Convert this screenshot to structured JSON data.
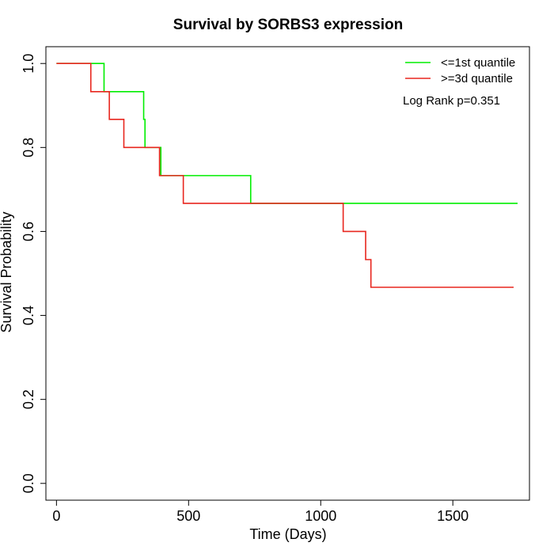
{
  "chart_data": {
    "type": "line",
    "title": "Survival by SORBS3 expression",
    "xlabel": "Time (Days)",
    "ylabel": "Survival Probability",
    "xlim": [
      -40,
      1790
    ],
    "ylim": [
      -0.04,
      1.04
    ],
    "xticks": [
      0,
      500,
      1000,
      1500
    ],
    "yticks": [
      0.0,
      0.2,
      0.4,
      0.6,
      0.8,
      1.0
    ],
    "xtick_labels": [
      "0",
      "500",
      "1000",
      "1500"
    ],
    "ytick_labels": [
      "0.0",
      "0.2",
      "0.4",
      "0.6",
      "0.8",
      "1.0"
    ],
    "grid": false,
    "legend_position": "top-right",
    "annotation": "Log Rank p=0.351",
    "series": [
      {
        "name": "<=1st quantile",
        "color": "#00ee00",
        "step": true,
        "x": [
          0,
          180,
          330,
          335,
          395,
          735,
          1745
        ],
        "y": [
          1.0,
          0.933,
          0.867,
          0.8,
          0.733,
          0.667,
          0.667
        ]
      },
      {
        "name": ">=3d quantile",
        "color": "#e8261e",
        "step": true,
        "x": [
          0,
          130,
          200,
          255,
          390,
          480,
          1085,
          1170,
          1190,
          1730
        ],
        "y": [
          1.0,
          0.933,
          0.867,
          0.8,
          0.733,
          0.667,
          0.6,
          0.533,
          0.467,
          0.467
        ]
      }
    ]
  }
}
